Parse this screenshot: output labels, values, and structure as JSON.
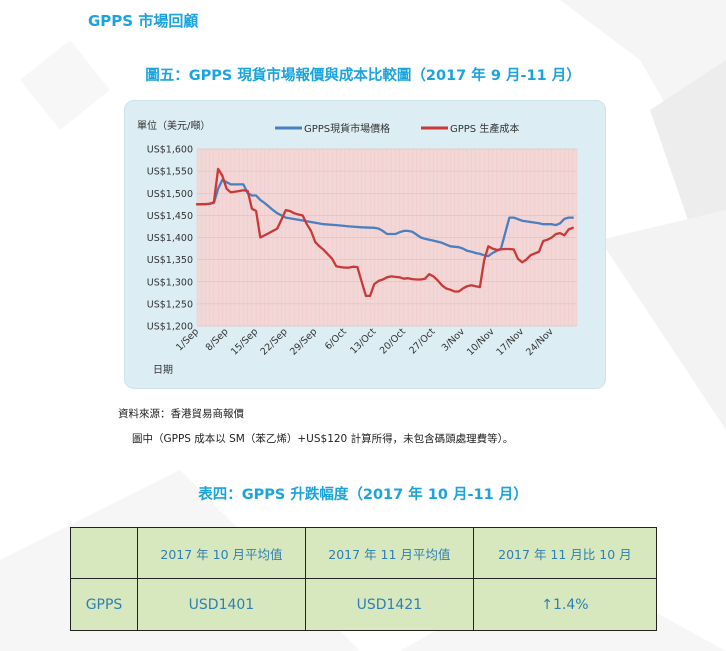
{
  "section_title": "GPPS 市場回顧",
  "figure_title": "圖五：GPPS  現貨市場報價與成本比較圖（2017 年 9 月-11 月）",
  "source": "資料來源：香港貿易商報價",
  "note": "圖中（GPPS  成本以 SM（苯乙烯）+US$120  計算所得，未包含碼頭處理費等）。",
  "table_title": "表四：GPPS 升跌幅度（2017 年 10 月-11 月）",
  "table": {
    "headers": [
      "",
      "2017 年 10 月平均值",
      "2017 年 11 月平均值",
      "2017 年 11 月比 10 月"
    ],
    "row_label": "GPPS",
    "oct_avg": "USD1401",
    "nov_avg": "USD1421",
    "change": "↑1.4%"
  },
  "colors": {
    "spot": "#4a7fc1",
    "cost": "#c8393a",
    "plot_bg": "#f3d7d6",
    "frame_bg": "#dcedf3",
    "accent": "#1aa3dc"
  },
  "chart_data": {
    "type": "line",
    "ylabel": "單位（美元/噸）",
    "xlabel": "日期",
    "x_ticks": [
      "1/Sep",
      "8/Sep",
      "15/Sep",
      "22/Sep",
      "29/Sep",
      "6/Oct",
      "13/Oct",
      "20/Oct",
      "27/Oct",
      "3/Nov",
      "10/Nov",
      "17/Nov",
      "24/Nov"
    ],
    "y_ticks": [
      "US$1,200",
      "US$1,250",
      "US$1,300",
      "US$1,350",
      "US$1,400",
      "US$1,450",
      "US$1,500",
      "US$1,550",
      "US$1,600"
    ],
    "ylim": [
      1200,
      1600
    ],
    "xlim": [
      0,
      90
    ],
    "grid": true,
    "legend_position": "top",
    "series": [
      {
        "name": "GPPS現貨市場價格",
        "color": "#4a7fc1",
        "x": [
          0,
          2,
          4,
          5,
          6,
          7,
          8,
          10,
          11,
          12,
          13,
          14,
          15,
          16,
          17,
          18,
          19,
          21,
          24,
          27,
          30,
          33,
          36,
          39,
          42,
          43,
          44,
          45,
          47,
          48,
          49,
          50,
          51,
          53,
          54,
          55,
          56,
          58,
          60,
          62,
          63,
          64,
          65,
          66,
          67,
          68,
          69,
          70,
          71,
          72,
          73,
          74,
          75,
          77,
          79,
          81,
          82,
          83,
          84,
          85,
          86,
          87,
          88,
          89
        ],
        "y": [
          1475,
          1475,
          1478,
          1510,
          1530,
          1525,
          1520,
          1520,
          1520,
          1500,
          1495,
          1495,
          1485,
          1478,
          1470,
          1462,
          1455,
          1445,
          1440,
          1435,
          1430,
          1428,
          1425,
          1423,
          1422,
          1420,
          1415,
          1408,
          1408,
          1412,
          1415,
          1415,
          1413,
          1400,
          1397,
          1395,
          1393,
          1388,
          1380,
          1378,
          1375,
          1370,
          1368,
          1365,
          1363,
          1360,
          1358,
          1365,
          1370,
          1375,
          1410,
          1445,
          1445,
          1438,
          1435,
          1432,
          1430,
          1430,
          1430,
          1428,
          1432,
          1442,
          1445,
          1445
        ]
      },
      {
        "name": "GPPS 生產成本",
        "color": "#c8393a",
        "x": [
          0,
          3,
          4,
          5,
          6,
          7,
          8,
          10,
          11,
          12,
          13,
          14,
          15,
          16,
          17,
          18,
          19,
          20,
          21,
          22,
          23,
          24,
          25,
          26,
          27,
          28,
          29,
          30,
          31,
          32,
          33,
          34,
          35,
          36,
          37,
          38,
          39,
          40,
          41,
          42,
          43,
          44,
          45,
          46,
          47,
          48,
          49,
          50,
          51,
          52,
          53,
          54,
          55,
          56,
          57,
          58,
          59,
          60,
          61,
          62,
          63,
          64,
          65,
          66,
          67,
          68,
          69,
          70,
          71,
          72,
          73,
          74,
          75,
          76,
          77,
          78,
          79,
          80,
          81,
          82,
          83,
          84,
          85,
          86,
          87,
          88,
          89
        ],
        "y": [
          1475,
          1476,
          1480,
          1555,
          1540,
          1510,
          1502,
          1505,
          1507,
          1505,
          1465,
          1460,
          1400,
          1405,
          1410,
          1415,
          1420,
          1440,
          1462,
          1460,
          1455,
          1452,
          1450,
          1430,
          1415,
          1390,
          1380,
          1372,
          1362,
          1352,
          1335,
          1333,
          1332,
          1332,
          1334,
          1333,
          1300,
          1268,
          1268,
          1295,
          1302,
          1305,
          1310,
          1312,
          1311,
          1310,
          1307,
          1308,
          1306,
          1305,
          1305,
          1307,
          1317,
          1312,
          1303,
          1292,
          1285,
          1282,
          1278,
          1278,
          1285,
          1290,
          1292,
          1290,
          1288,
          1348,
          1380,
          1375,
          1372,
          1373,
          1374,
          1374,
          1373,
          1352,
          1344,
          1350,
          1360,
          1364,
          1368,
          1392,
          1395,
          1400,
          1408,
          1410,
          1405,
          1418,
          1422
        ]
      }
    ]
  }
}
